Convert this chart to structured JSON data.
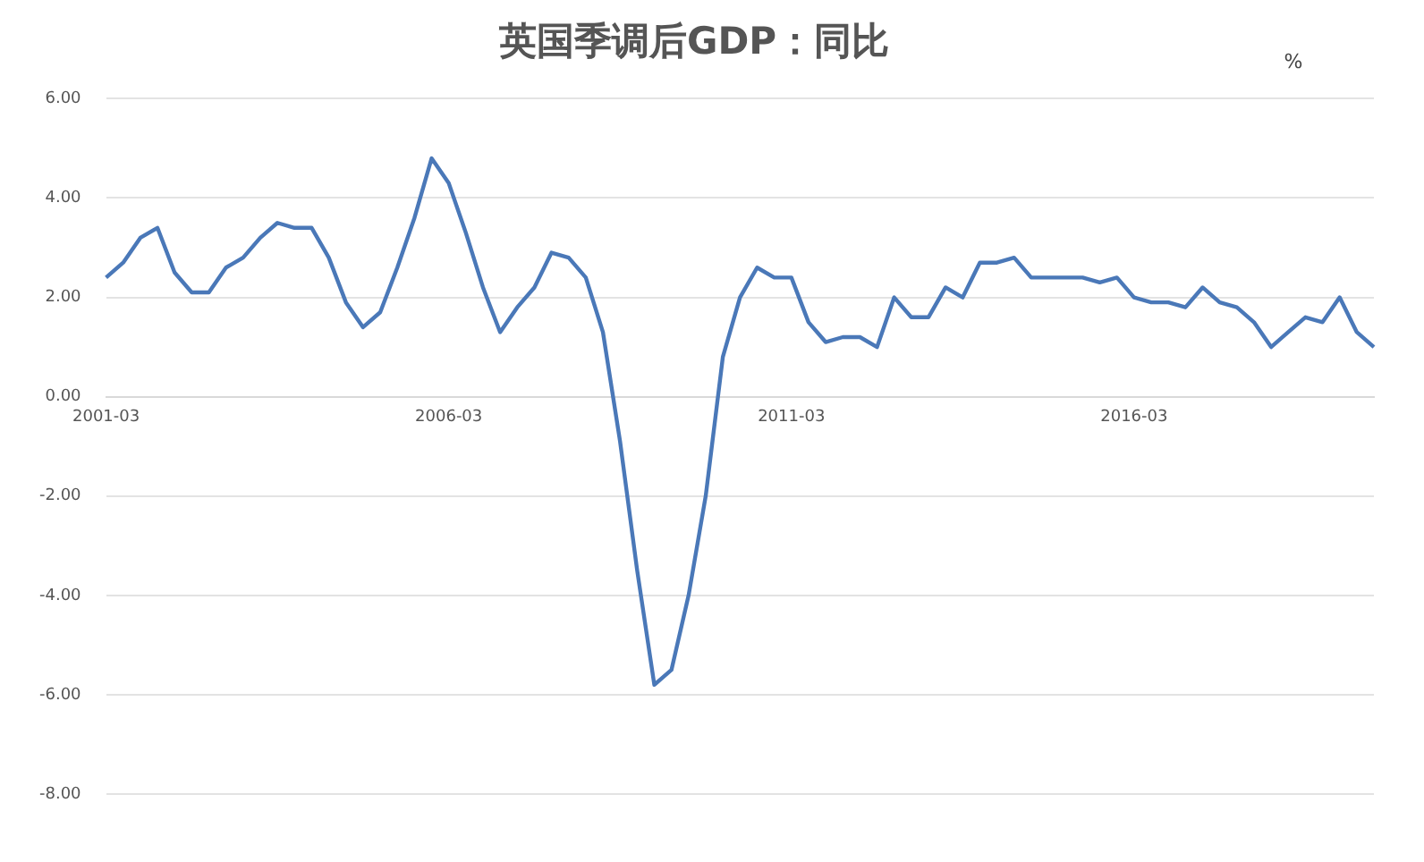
{
  "chart_data": {
    "type": "line",
    "title": "英国季调后GDP：同比",
    "ylabel": "%",
    "categories": [
      "2001-03",
      null,
      null,
      null,
      null,
      null,
      null,
      null,
      null,
      null,
      null,
      null,
      null,
      null,
      null,
      null,
      null,
      null,
      null,
      null,
      "2006-03",
      null,
      null,
      null,
      null,
      null,
      null,
      null,
      null,
      null,
      null,
      null,
      null,
      null,
      null,
      null,
      null,
      null,
      null,
      null,
      "2011-03",
      null,
      null,
      null,
      null,
      null,
      null,
      null,
      null,
      null,
      null,
      null,
      null,
      null,
      null,
      null,
      null,
      null,
      null,
      null,
      "2016-03",
      null,
      null,
      null,
      null,
      null,
      null,
      null,
      null,
      null,
      null,
      null,
      null,
      null,
      null
    ],
    "series": [
      {
        "color": "#4a78b8",
        "values": [
          2.4,
          2.7,
          3.2,
          3.4,
          2.5,
          2.1,
          2.1,
          2.6,
          2.8,
          3.2,
          3.5,
          3.4,
          3.4,
          2.8,
          1.9,
          1.4,
          1.7,
          2.6,
          3.6,
          4.8,
          4.3,
          3.3,
          2.2,
          1.3,
          1.8,
          2.2,
          2.9,
          2.8,
          2.4,
          1.3,
          -0.9,
          -3.5,
          -5.8,
          -5.5,
          -4.0,
          -2.0,
          0.8,
          2.0,
          2.6,
          2.4,
          2.4,
          1.5,
          1.1,
          1.2,
          1.2,
          1.0,
          2.0,
          1.6,
          1.6,
          2.2,
          2.0,
          2.7,
          2.7,
          2.8,
          2.4,
          2.4,
          2.4,
          2.4,
          2.3,
          2.4,
          2.0,
          1.9,
          1.9,
          1.8,
          2.2,
          1.9,
          1.8,
          1.5,
          1.0,
          1.3,
          1.6,
          1.5,
          2.0,
          1.3,
          1.0
        ]
      }
    ],
    "ylim": [
      -8,
      6
    ],
    "yticks": [
      {
        "value": -8,
        "label": "-8.00"
      },
      {
        "value": -6,
        "label": "-6.00"
      },
      {
        "value": -4,
        "label": "-4.00"
      },
      {
        "value": -2,
        "label": "-2.00"
      },
      {
        "value": 0,
        "label": "0.00"
      },
      {
        "value": 2,
        "label": "2.00"
      },
      {
        "value": 4,
        "label": "4.00"
      },
      {
        "value": 6,
        "label": "6.00"
      }
    ],
    "grid": "y",
    "legend": false,
    "marker": "none",
    "line_style": "solid"
  }
}
